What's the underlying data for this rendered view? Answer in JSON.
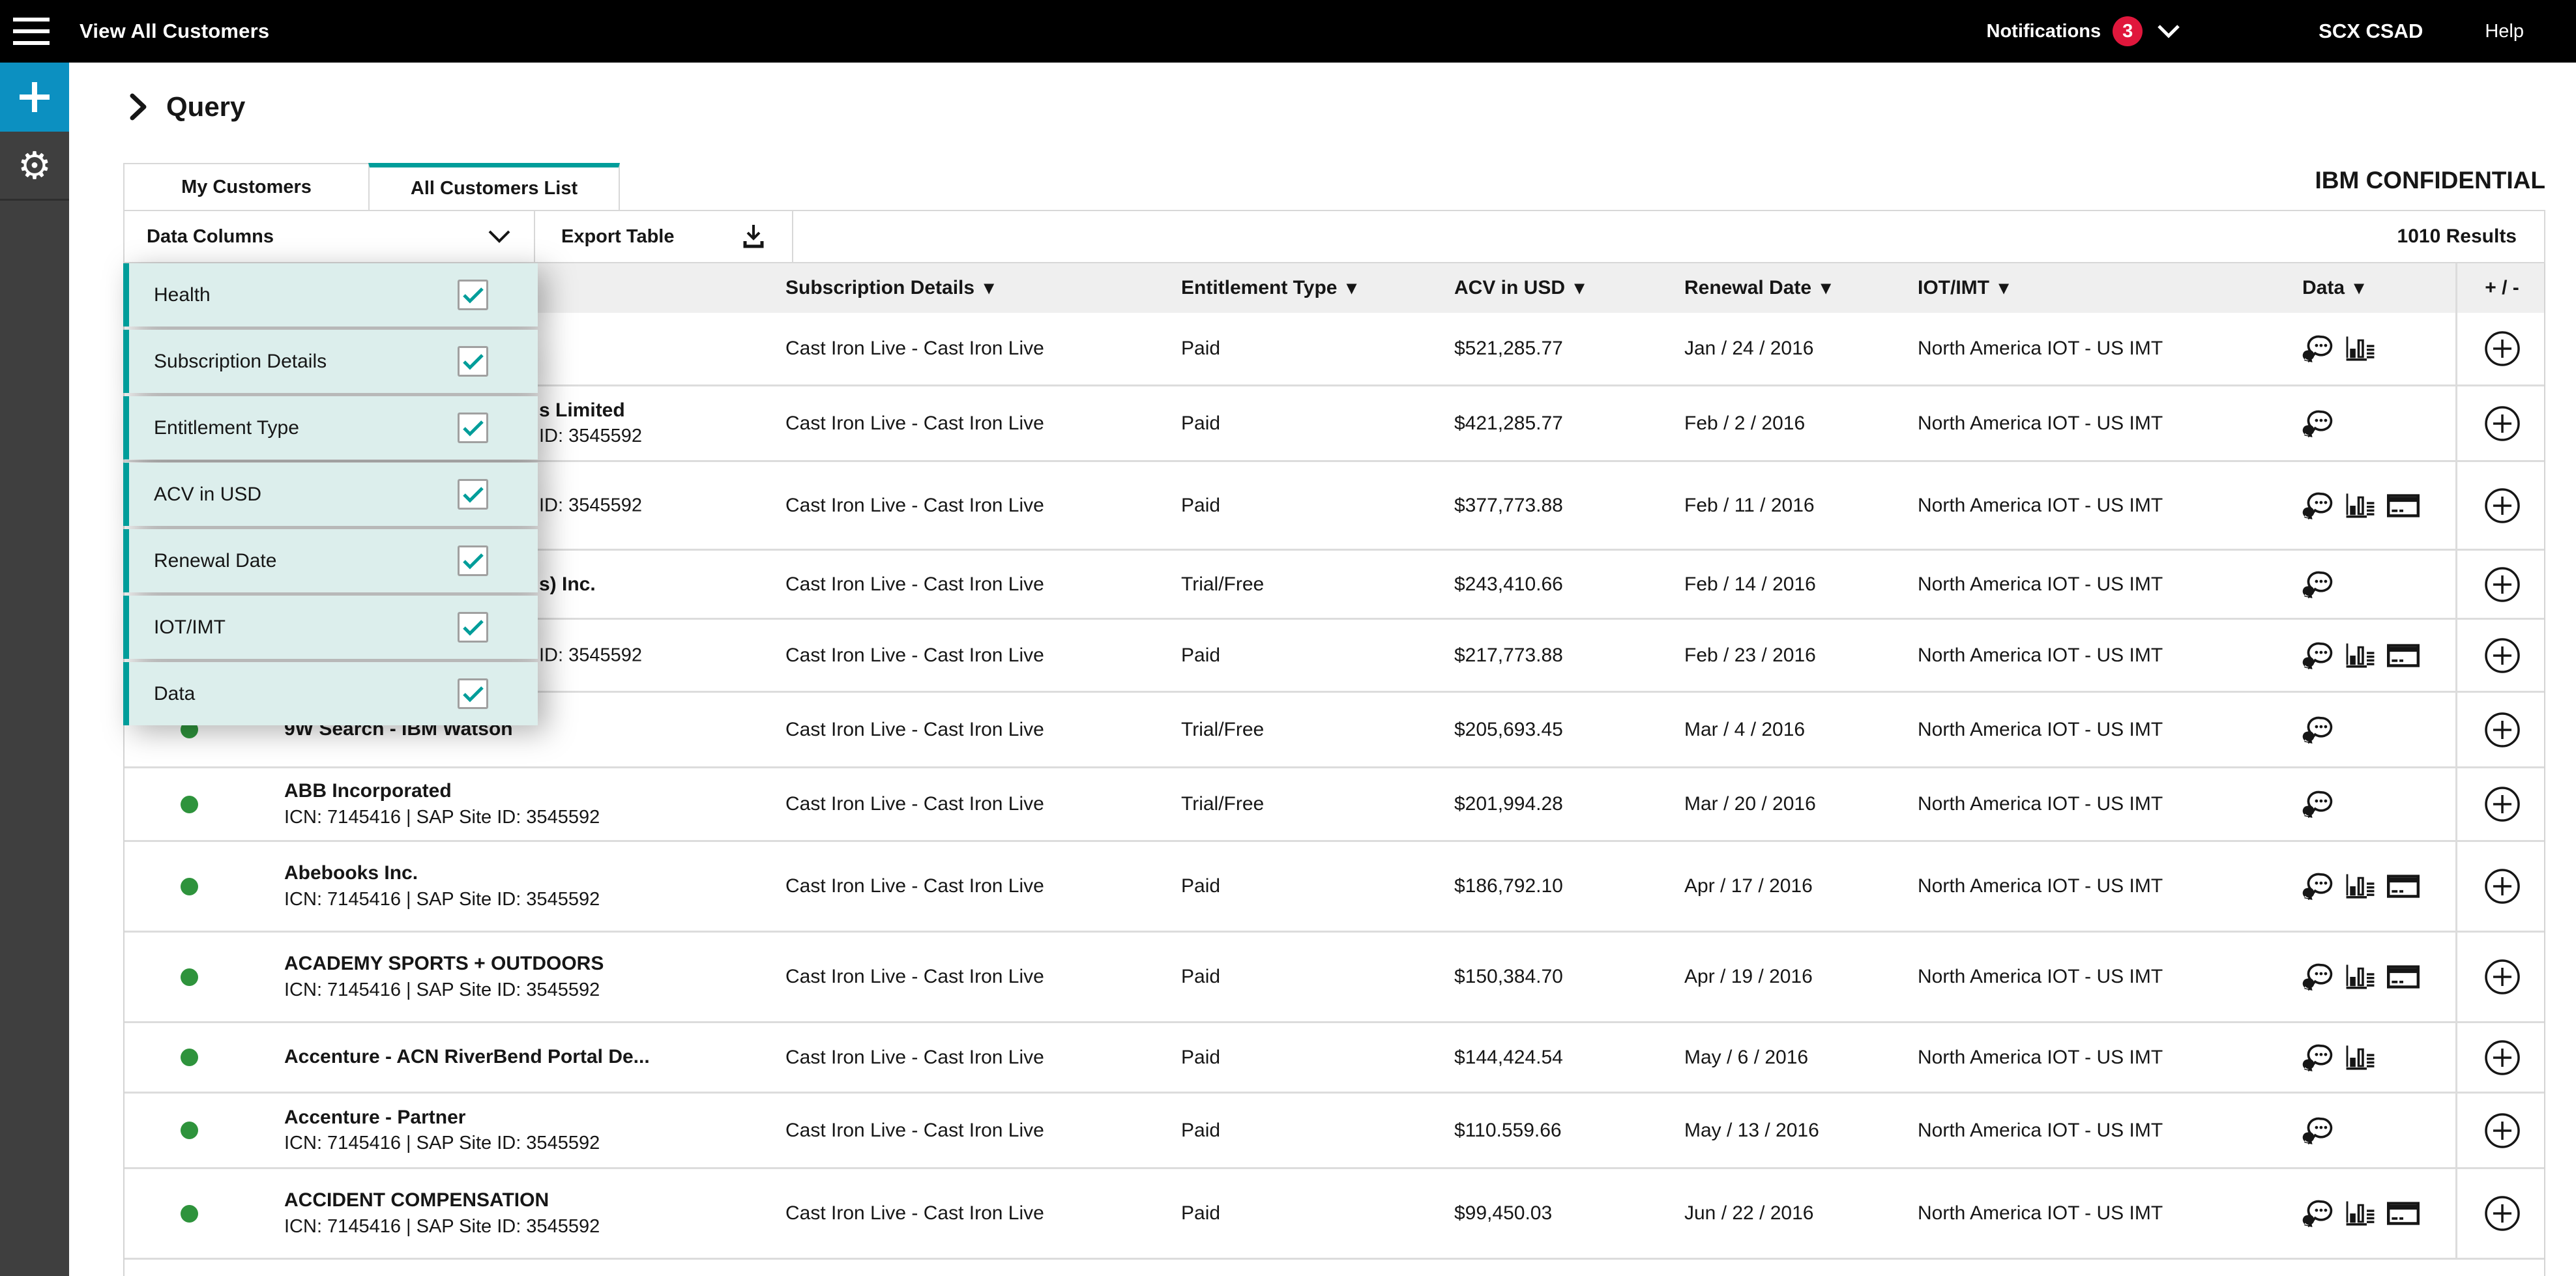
{
  "header": {
    "title": "View All Customers",
    "notifications_label": "Notifications",
    "notifications_count": "3",
    "user": "SCX CSAD",
    "help_label": "Help"
  },
  "sidebar": {
    "icons": [
      {
        "name": "add-icon",
        "glyph": "+"
      },
      {
        "name": "settings-gear-icon",
        "glyph": "⚙"
      }
    ]
  },
  "page": {
    "query_label": "Query",
    "confidential": "IBM CONFIDENTIAL"
  },
  "tabs": [
    {
      "label": "My Customers",
      "active": false
    },
    {
      "label": "All Customers List",
      "active": true
    }
  ],
  "toolbar": {
    "data_columns_label": "Data Columns",
    "export_label": "Export Table",
    "results": "1010 Results"
  },
  "columns_menu": {
    "items": [
      {
        "label": "Health",
        "checked": true
      },
      {
        "label": "Subscription Details",
        "checked": true
      },
      {
        "label": "Entitlement Type",
        "checked": true
      },
      {
        "label": "ACV in USD",
        "checked": true
      },
      {
        "label": "Renewal Date",
        "checked": true
      },
      {
        "label": "IOT/IMT",
        "checked": true
      },
      {
        "label": "Data",
        "checked": true
      }
    ],
    "accent_color": "#009d9a",
    "item_bg_color": "#dceeec"
  },
  "table": {
    "headers": [
      {
        "label": "Subscription Details",
        "sortable": true
      },
      {
        "label": "Entitlement Type",
        "sortable": true
      },
      {
        "label": "ACV in USD",
        "sortable": true
      },
      {
        "label": "Renewal Date",
        "sortable": true
      },
      {
        "label": "IOT/IMT",
        "sortable": true
      },
      {
        "label": "Data",
        "sortable": true
      }
    ],
    "plus_minus_label": "+ / -",
    "health_dot_color": "#2e933c"
  },
  "rows": [
    {
      "has_dot": false,
      "name": "",
      "subtitle": "",
      "name_fragment": "",
      "subtitle_fragment": "",
      "subscription": "Cast Iron Live - Cast Iron Live",
      "entitlement": "Paid",
      "acv": "$521,285.77",
      "renewal": "Jan / 24 / 2016",
      "iot": "North America IOT - US IMT",
      "icons": [
        "chat",
        "chart"
      ]
    },
    {
      "has_dot": false,
      "name": "",
      "subtitle": "",
      "name_fragment": "s Limited",
      "subtitle_fragment": "ID: 3545592",
      "subscription": "Cast Iron Live - Cast Iron Live",
      "entitlement": "Paid",
      "acv": "$421,285.77",
      "renewal": "Feb / 2 / 2016",
      "iot": "North America IOT - US IMT",
      "icons": [
        "chat"
      ]
    },
    {
      "has_dot": false,
      "name": "",
      "subtitle": "",
      "name_fragment": "",
      "subtitle_fragment": "ID: 3545592",
      "subscription": "Cast Iron Live - Cast Iron Live",
      "entitlement": "Paid",
      "acv": "$377,773.88",
      "renewal": "Feb / 11 / 2016",
      "iot": "North America IOT - US IMT",
      "icons": [
        "chat",
        "chart",
        "card"
      ]
    },
    {
      "has_dot": false,
      "name": "",
      "subtitle": "",
      "name_fragment": "s) Inc.",
      "subtitle_fragment": "",
      "subscription": "Cast Iron Live - Cast Iron Live",
      "entitlement": "Trial/Free",
      "acv": "$243,410.66",
      "renewal": "Feb / 14 / 2016",
      "iot": "North America IOT - US IMT",
      "icons": [
        "chat"
      ]
    },
    {
      "has_dot": false,
      "name": "",
      "subtitle": "",
      "name_fragment": "",
      "subtitle_fragment": "ID: 3545592",
      "subscription": "Cast Iron Live - Cast Iron Live",
      "entitlement": "Paid",
      "acv": "$217,773.88",
      "renewal": "Feb / 23 / 2016",
      "iot": "North America IOT - US IMT",
      "icons": [
        "chat",
        "chart",
        "card"
      ]
    },
    {
      "has_dot": true,
      "name": "9W Search - IBM Watson",
      "subtitle": "",
      "name_fragment": "",
      "subtitle_fragment": "",
      "subscription": "Cast Iron Live - Cast Iron Live",
      "entitlement": "Trial/Free",
      "acv": "$205,693.45",
      "renewal": "Mar / 4 / 2016",
      "iot": "North America IOT - US IMT",
      "icons": [
        "chat"
      ]
    },
    {
      "has_dot": true,
      "name": "ABB Incorporated",
      "subtitle": "ICN: 7145416 | SAP Site ID: 3545592",
      "name_fragment": "",
      "subtitle_fragment": "",
      "subscription": "Cast Iron Live - Cast Iron Live",
      "entitlement": "Trial/Free",
      "acv": "$201,994.28",
      "renewal": "Mar / 20 / 2016",
      "iot": "North America IOT - US IMT",
      "icons": [
        "chat"
      ]
    },
    {
      "has_dot": true,
      "name": "Abebooks Inc.",
      "subtitle": "ICN: 7145416 | SAP Site ID: 3545592",
      "name_fragment": "",
      "subtitle_fragment": "",
      "subscription": "Cast Iron Live - Cast Iron Live",
      "entitlement": "Paid",
      "acv": "$186,792.10",
      "renewal": "Apr / 17 / 2016",
      "iot": "North America IOT - US IMT",
      "icons": [
        "chat",
        "chart",
        "card"
      ]
    },
    {
      "has_dot": true,
      "name": "ACADEMY SPORTS + OUTDOORS",
      "subtitle": "ICN: 7145416 | SAP Site ID: 3545592",
      "name_fragment": "",
      "subtitle_fragment": "",
      "subscription": "Cast Iron Live - Cast Iron Live",
      "entitlement": "Paid",
      "acv": "$150,384.70",
      "renewal": "Apr / 19 / 2016",
      "iot": "North America IOT - US IMT",
      "icons": [
        "chat",
        "chart",
        "card"
      ]
    },
    {
      "has_dot": true,
      "name": "Accenture - ACN RiverBend Portal De...",
      "subtitle": "",
      "name_fragment": "",
      "subtitle_fragment": "",
      "subscription": "Cast Iron Live - Cast Iron Live",
      "entitlement": "Paid",
      "acv": "$144,424.54",
      "renewal": "May / 6 / 2016",
      "iot": "North America IOT - US IMT",
      "icons": [
        "chat",
        "chart"
      ]
    },
    {
      "has_dot": true,
      "name": "Accenture - Partner",
      "subtitle": "ICN: 7145416 | SAP Site ID: 3545592",
      "name_fragment": "",
      "subtitle_fragment": "",
      "subscription": "Cast Iron Live - Cast Iron Live",
      "entitlement": "Paid",
      "acv": "$110.559.66",
      "renewal": "May / 13 / 2016",
      "iot": "North America IOT - US IMT",
      "icons": [
        "chat"
      ]
    },
    {
      "has_dot": true,
      "name": "ACCIDENT COMPENSATION",
      "subtitle": "ICN: 7145416 | SAP Site ID: 3545592",
      "name_fragment": "",
      "subtitle_fragment": "",
      "subscription": "Cast Iron Live - Cast Iron Live",
      "entitlement": "Paid",
      "acv": "$99,450.03",
      "renewal": "Jun / 22 / 2016",
      "iot": "North America IOT - US IMT",
      "icons": [
        "chat",
        "chart",
        "card"
      ]
    }
  ]
}
